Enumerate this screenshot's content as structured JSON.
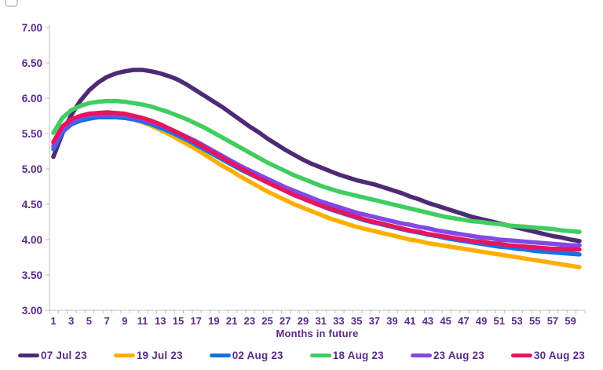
{
  "chart_data": {
    "type": "line",
    "title": "",
    "xlabel": "Months in future",
    "ylabel": "",
    "ylim": [
      3.0,
      7.0
    ],
    "xlim": [
      1,
      60
    ],
    "grid": false,
    "legend_position": "bottom",
    "y_tick_labels": [
      "7.00",
      "6.50",
      "6.00",
      "5.50",
      "5.00",
      "4.50",
      "4.00",
      "3.50",
      "3.00"
    ],
    "y_tick_values": [
      7.0,
      6.5,
      6.0,
      5.5,
      5.0,
      4.5,
      4.0,
      3.5,
      3.0
    ],
    "x_tick_labels": [
      "1",
      "3",
      "5",
      "7",
      "9",
      "11",
      "13",
      "15",
      "17",
      "19",
      "21",
      "23",
      "25",
      "27",
      "29",
      "31",
      "33",
      "35",
      "37",
      "39",
      "41",
      "43",
      "45",
      "47",
      "49",
      "51",
      "53",
      "55",
      "57",
      "59"
    ],
    "x_tick_values": [
      1,
      3,
      5,
      7,
      9,
      11,
      13,
      15,
      17,
      19,
      21,
      23,
      25,
      27,
      29,
      31,
      33,
      35,
      37,
      39,
      41,
      43,
      45,
      47,
      49,
      51,
      53,
      55,
      57,
      59
    ],
    "x_months": [
      1,
      2,
      3,
      4,
      5,
      6,
      7,
      8,
      9,
      10,
      11,
      12,
      13,
      14,
      15,
      16,
      17,
      18,
      19,
      20,
      21,
      22,
      23,
      24,
      25,
      26,
      27,
      28,
      29,
      30,
      31,
      32,
      33,
      34,
      35,
      36,
      37,
      38,
      39,
      40,
      41,
      42,
      43,
      44,
      45,
      46,
      47,
      48,
      49,
      50,
      51,
      52,
      53,
      54,
      55,
      56,
      57,
      58,
      59,
      60
    ],
    "series": [
      {
        "name": "07 Jul 23",
        "color": "#4E2A75",
        "values": [
          5.17,
          5.5,
          5.76,
          5.96,
          6.11,
          6.22,
          6.3,
          6.35,
          6.38,
          6.4,
          6.4,
          6.38,
          6.35,
          6.31,
          6.26,
          6.19,
          6.11,
          6.03,
          5.95,
          5.87,
          5.78,
          5.69,
          5.6,
          5.52,
          5.43,
          5.35,
          5.27,
          5.2,
          5.13,
          5.07,
          5.02,
          4.97,
          4.92,
          4.88,
          4.84,
          4.81,
          4.78,
          4.74,
          4.7,
          4.66,
          4.61,
          4.57,
          4.52,
          4.48,
          4.44,
          4.4,
          4.36,
          4.32,
          4.29,
          4.26,
          4.23,
          4.2,
          4.17,
          4.14,
          4.11,
          4.08,
          4.05,
          4.03,
          4.0,
          3.98
        ]
      },
      {
        "name": "19 Jul 23",
        "color": "#FFAE00",
        "values": [
          5.36,
          5.58,
          5.68,
          5.74,
          5.77,
          5.78,
          5.78,
          5.76,
          5.73,
          5.7,
          5.66,
          5.61,
          5.55,
          5.49,
          5.42,
          5.35,
          5.28,
          5.2,
          5.12,
          5.04,
          4.97,
          4.89,
          4.82,
          4.75,
          4.68,
          4.62,
          4.56,
          4.5,
          4.45,
          4.4,
          4.35,
          4.3,
          4.26,
          4.22,
          4.18,
          4.15,
          4.12,
          4.09,
          4.06,
          4.03,
          4.0,
          3.98,
          3.95,
          3.93,
          3.91,
          3.89,
          3.87,
          3.85,
          3.83,
          3.81,
          3.79,
          3.77,
          3.75,
          3.73,
          3.71,
          3.69,
          3.67,
          3.65,
          3.63,
          3.61
        ]
      },
      {
        "name": "02 Aug 23",
        "color": "#1273E6",
        "values": [
          5.28,
          5.52,
          5.63,
          5.68,
          5.71,
          5.73,
          5.73,
          5.73,
          5.72,
          5.7,
          5.67,
          5.63,
          5.58,
          5.53,
          5.47,
          5.41,
          5.34,
          5.27,
          5.2,
          5.13,
          5.06,
          4.99,
          4.93,
          4.87,
          4.81,
          4.75,
          4.69,
          4.63,
          4.58,
          4.53,
          4.48,
          4.43,
          4.39,
          4.35,
          4.31,
          4.27,
          4.24,
          4.21,
          4.18,
          4.15,
          4.12,
          4.1,
          4.07,
          4.05,
          4.02,
          4.0,
          3.98,
          3.96,
          3.94,
          3.92,
          3.9,
          3.89,
          3.87,
          3.86,
          3.84,
          3.83,
          3.82,
          3.81,
          3.8,
          3.79
        ]
      },
      {
        "name": "18 Aug 23",
        "color": "#41CD5F",
        "values": [
          5.51,
          5.72,
          5.83,
          5.89,
          5.93,
          5.95,
          5.96,
          5.96,
          5.95,
          5.93,
          5.91,
          5.88,
          5.84,
          5.8,
          5.75,
          5.7,
          5.64,
          5.58,
          5.51,
          5.44,
          5.37,
          5.3,
          5.23,
          5.16,
          5.09,
          5.03,
          4.97,
          4.91,
          4.86,
          4.81,
          4.76,
          4.72,
          4.68,
          4.65,
          4.62,
          4.59,
          4.56,
          4.53,
          4.5,
          4.47,
          4.44,
          4.41,
          4.38,
          4.35,
          4.32,
          4.3,
          4.28,
          4.26,
          4.25,
          4.23,
          4.22,
          4.2,
          4.19,
          4.18,
          4.17,
          4.16,
          4.15,
          4.13,
          4.12,
          4.11
        ]
      },
      {
        "name": "23 Aug 23",
        "color": "#8348E5",
        "values": [
          5.32,
          5.55,
          5.66,
          5.72,
          5.75,
          5.76,
          5.77,
          5.76,
          5.75,
          5.73,
          5.7,
          5.66,
          5.62,
          5.57,
          5.51,
          5.45,
          5.39,
          5.32,
          5.25,
          5.18,
          5.11,
          5.04,
          4.98,
          4.92,
          4.86,
          4.8,
          4.74,
          4.69,
          4.64,
          4.59,
          4.54,
          4.5,
          4.46,
          4.42,
          4.38,
          4.35,
          4.32,
          4.29,
          4.26,
          4.23,
          4.21,
          4.18,
          4.16,
          4.13,
          4.11,
          4.09,
          4.07,
          4.05,
          4.03,
          4.02,
          4.0,
          3.99,
          3.98,
          3.97,
          3.96,
          3.95,
          3.94,
          3.93,
          3.92,
          3.92
        ]
      },
      {
        "name": "30 Aug 23",
        "color": "#E6155E",
        "values": [
          5.38,
          5.6,
          5.7,
          5.75,
          5.78,
          5.79,
          5.8,
          5.79,
          5.78,
          5.75,
          5.72,
          5.68,
          5.63,
          5.57,
          5.51,
          5.44,
          5.37,
          5.3,
          5.23,
          5.15,
          5.08,
          5.01,
          4.94,
          4.87,
          4.81,
          4.75,
          4.69,
          4.63,
          4.58,
          4.53,
          4.48,
          4.44,
          4.4,
          4.36,
          4.32,
          4.28,
          4.25,
          4.22,
          4.19,
          4.16,
          4.13,
          4.11,
          4.08,
          4.06,
          4.04,
          4.02,
          4.0,
          3.98,
          3.97,
          3.95,
          3.94,
          3.92,
          3.91,
          3.9,
          3.89,
          3.88,
          3.87,
          3.87,
          3.86,
          3.86
        ]
      }
    ]
  },
  "colors": {
    "axis_text": "#5B2B86",
    "axis_line": "#BFBFBF",
    "background": "#FFFFFF"
  }
}
